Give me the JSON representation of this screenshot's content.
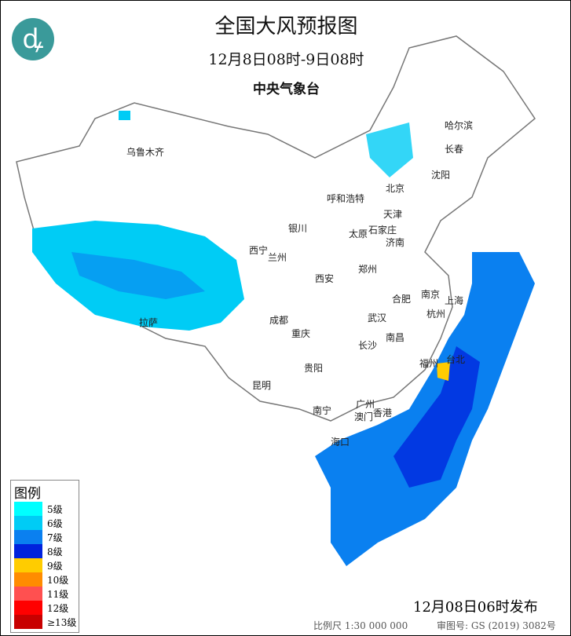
{
  "header": {
    "title": "全国大风预报图",
    "period": "12月8日08时-9日08时",
    "organization": "中央气象台"
  },
  "cities": [
    "乌鲁木齐",
    "哈尔滨",
    "长春",
    "沈阳",
    "北京",
    "呼和浩特",
    "天津",
    "银川",
    "石家庄",
    "太原",
    "济南",
    "西宁",
    "兰州",
    "郑州",
    "西安",
    "合肥",
    "南京",
    "上海",
    "成都",
    "武汉",
    "杭州",
    "重庆",
    "长沙",
    "南昌",
    "拉萨",
    "贵阳",
    "福州",
    "台北",
    "昆明",
    "广州",
    "南宁",
    "澳门",
    "香港",
    "海口"
  ],
  "legend": {
    "title": "图例",
    "items": [
      {
        "label": "5级",
        "color": "#00ffff"
      },
      {
        "label": "6级",
        "color": "#00ccf5"
      },
      {
        "label": "7级",
        "color": "#0a80f0"
      },
      {
        "label": "8级",
        "color": "#0022dd"
      },
      {
        "label": "9级",
        "color": "#ffcc00"
      },
      {
        "label": "10级",
        "color": "#ff8c00"
      },
      {
        "label": "11级",
        "color": "#ff5050"
      },
      {
        "label": "12级",
        "color": "#ff0000"
      },
      {
        "label": "≥13级",
        "color": "#c80000"
      }
    ]
  },
  "footer": {
    "issued": "12月08日06时发布",
    "scale": "比例尺 1:30 000 000",
    "review_number": "审图号: GS (2019) 3082号"
  }
}
